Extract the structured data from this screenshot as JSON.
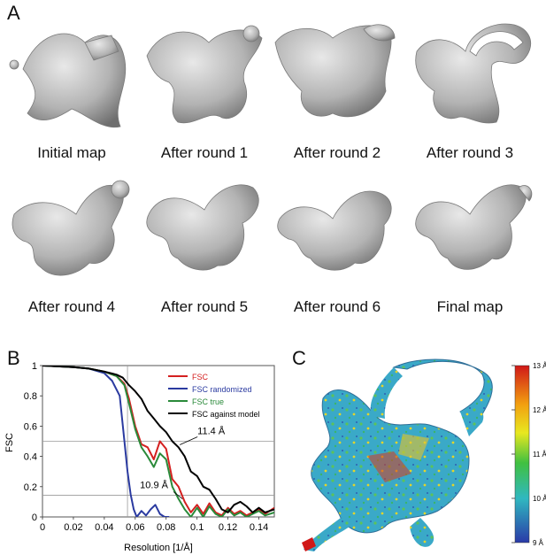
{
  "panels": {
    "a_label": "A",
    "b_label": "B",
    "c_label": "C"
  },
  "maps": [
    {
      "caption": "Initial map"
    },
    {
      "caption": "After round 1"
    },
    {
      "caption": "After round 2"
    },
    {
      "caption": "After round 3"
    },
    {
      "caption": "After round 4"
    },
    {
      "caption": "After round 5"
    },
    {
      "caption": "After round 6"
    },
    {
      "caption": "Final map"
    }
  ],
  "surface_color": "#b3b3b3",
  "chart_data": [
    {
      "type": "line",
      "xlabel": "Resolution [1/Å]",
      "ylabel": "FSC",
      "xlim": [
        0,
        0.15
      ],
      "ylim": [
        0,
        1
      ],
      "xticks": [
        "0",
        "0.02",
        "0.04",
        "0.06",
        "0.08",
        "0.1",
        "0.12",
        "0.14"
      ],
      "yticks": [
        "0",
        "0.2",
        "0.4",
        "0.6",
        "0.8",
        "1"
      ],
      "reference_lines": {
        "y": [
          0.5,
          0.143
        ],
        "x": [
          0.055
        ]
      },
      "legend_position": "top-right",
      "annotations": [
        {
          "text": "11.4 Å",
          "x": 0.0877,
          "y": 0.5
        },
        {
          "text": "10.9 Å",
          "x": 0.0917,
          "y": 0.143
        }
      ],
      "series": [
        {
          "name": "FSC",
          "color": "#d42020",
          "x": [
            0,
            0.01,
            0.02,
            0.03,
            0.04,
            0.048,
            0.053,
            0.056,
            0.06,
            0.064,
            0.068,
            0.072,
            0.076,
            0.08,
            0.084,
            0.088,
            0.092,
            0.096,
            0.1,
            0.104,
            0.108,
            0.112,
            0.116,
            0.12,
            0.124,
            0.128,
            0.132,
            0.136,
            0.14,
            0.144,
            0.15
          ],
          "y": [
            1,
            0.995,
            0.99,
            0.98,
            0.96,
            0.93,
            0.88,
            0.78,
            0.6,
            0.48,
            0.46,
            0.38,
            0.5,
            0.45,
            0.25,
            0.2,
            0.1,
            0.03,
            0.08,
            0.02,
            0.09,
            0.03,
            0.01,
            0.06,
            0.02,
            0.04,
            0.01,
            0.03,
            0.05,
            0.02,
            0.06
          ]
        },
        {
          "name": "FSC randomized",
          "color": "#2a3aa0",
          "x": [
            0,
            0.01,
            0.02,
            0.03,
            0.04,
            0.045,
            0.05,
            0.053,
            0.055,
            0.057,
            0.059,
            0.061,
            0.064,
            0.067,
            0.07,
            0.073,
            0.076,
            0.079,
            0.082
          ],
          "y": [
            1,
            0.995,
            0.99,
            0.98,
            0.95,
            0.9,
            0.8,
            0.5,
            0.3,
            0.15,
            0.05,
            0.0,
            0.04,
            0.01,
            0.05,
            0.08,
            0.02,
            0.0,
            0.0
          ]
        },
        {
          "name": "FSC true",
          "color": "#2a8a3a",
          "x": [
            0,
            0.01,
            0.02,
            0.03,
            0.04,
            0.048,
            0.053,
            0.056,
            0.06,
            0.064,
            0.068,
            0.072,
            0.076,
            0.08,
            0.084,
            0.088,
            0.092,
            0.096,
            0.1,
            0.104,
            0.108,
            0.112,
            0.116,
            0.12,
            0.124,
            0.128,
            0.132,
            0.136,
            0.14,
            0.144,
            0.15
          ],
          "y": [
            1,
            0.995,
            0.99,
            0.98,
            0.96,
            0.93,
            0.87,
            0.75,
            0.58,
            0.46,
            0.4,
            0.33,
            0.42,
            0.38,
            0.2,
            0.12,
            0.05,
            0.0,
            0.06,
            0.0,
            0.07,
            0.02,
            0.0,
            0.05,
            0.01,
            0.03,
            0.0,
            0.02,
            0.04,
            0.01,
            0.03
          ]
        },
        {
          "name": "FSC against model",
          "color": "#000000",
          "x": [
            0,
            0.01,
            0.02,
            0.03,
            0.04,
            0.048,
            0.052,
            0.056,
            0.06,
            0.064,
            0.068,
            0.072,
            0.076,
            0.08,
            0.084,
            0.088,
            0.092,
            0.096,
            0.1,
            0.104,
            0.108,
            0.112,
            0.116,
            0.12,
            0.124,
            0.128,
            0.132,
            0.136,
            0.14,
            0.144,
            0.15
          ],
          "y": [
            1,
            0.995,
            0.99,
            0.98,
            0.96,
            0.94,
            0.92,
            0.87,
            0.83,
            0.78,
            0.7,
            0.65,
            0.6,
            0.56,
            0.5,
            0.46,
            0.4,
            0.3,
            0.27,
            0.2,
            0.18,
            0.12,
            0.05,
            0.03,
            0.08,
            0.1,
            0.07,
            0.03,
            0.06,
            0.03,
            0.05
          ]
        }
      ]
    },
    {
      "type": "heatmap",
      "colorbar_ticks": [
        "13 Å",
        "12 Å",
        "11 Å",
        "10 Å",
        "9 Å"
      ],
      "colorbar_range": [
        9,
        13
      ],
      "colormap": [
        "#d01818",
        "#f2a010",
        "#e8e820",
        "#40c040",
        "#30b8c0",
        "#2a3aa8"
      ]
    }
  ]
}
